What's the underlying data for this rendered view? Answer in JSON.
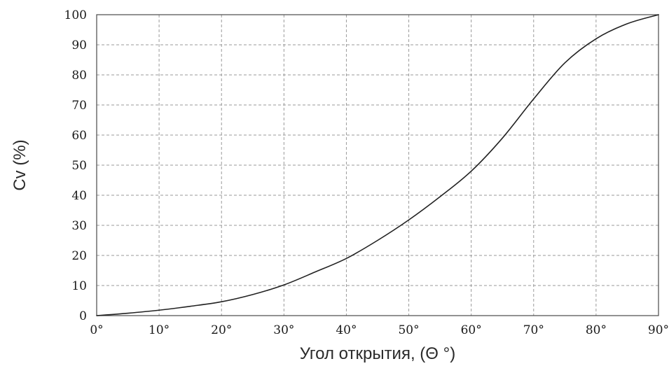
{
  "chart_data": {
    "type": "line",
    "title": "",
    "xlabel": "Угол открытия, (Θ °)",
    "ylabel": "Cv (%)",
    "xlim": [
      0,
      90
    ],
    "ylim": [
      0,
      100
    ],
    "grid": true,
    "x_ticks": [
      0,
      10,
      20,
      30,
      40,
      50,
      60,
      70,
      80,
      90
    ],
    "x_tick_labels": [
      "0°",
      "10°",
      "20°",
      "30°",
      "40°",
      "50°",
      "60°",
      "70°",
      "80°",
      "90°"
    ],
    "y_ticks": [
      0,
      10,
      20,
      30,
      40,
      50,
      60,
      70,
      80,
      90,
      100
    ],
    "y_tick_labels": [
      "0",
      "10",
      "20",
      "30",
      "40",
      "50",
      "60",
      "70",
      "80",
      "90",
      "100"
    ],
    "series": [
      {
        "color": "#222222",
        "x": [
          0,
          5,
          10,
          15,
          20,
          25,
          30,
          35,
          40,
          45,
          50,
          55,
          60,
          65,
          70,
          75,
          80,
          85,
          90
        ],
        "y": [
          0,
          0.8,
          1.8,
          3.1,
          4.6,
          7.0,
          10.2,
          14.5,
          19.0,
          25.0,
          31.8,
          39.5,
          48.0,
          59.0,
          72.0,
          84.0,
          92.0,
          97.0,
          100.0
        ]
      }
    ]
  }
}
